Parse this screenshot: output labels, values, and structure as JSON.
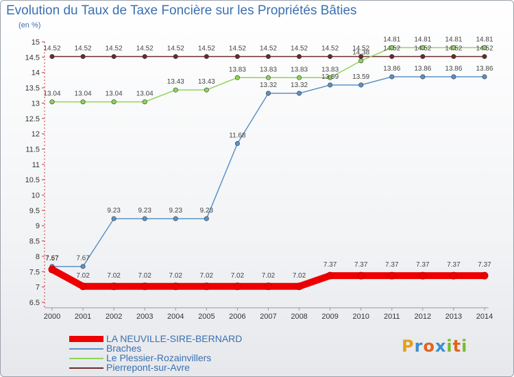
{
  "chart_data": {
    "type": "line",
    "title": "Evolution du Taux de Taxe Foncière sur les Propriétés Bâties",
    "ylabel": "(en %)",
    "xlabel": "",
    "ylim": [
      6.5,
      15
    ],
    "ytick_step": 0.5,
    "grid": false,
    "legend_position": "bottom-left",
    "x": [
      "2000",
      "2001",
      "2002",
      "2003",
      "2004",
      "2005",
      "2006",
      "2007",
      "2008",
      "2009",
      "2010",
      "2011",
      "2012",
      "2013",
      "2014"
    ],
    "series": [
      {
        "name": "LA NEUVILLE-SIRE-BERNARD",
        "color": "#ee0000",
        "emphasis": true,
        "values": [
          7.57,
          7.02,
          7.02,
          7.02,
          7.02,
          7.02,
          7.02,
          7.02,
          7.02,
          7.37,
          7.37,
          7.37,
          7.37,
          7.37,
          7.37
        ],
        "labels": [
          "7.57",
          "7.02",
          "7.02",
          "7.02",
          "7.02",
          "7.02",
          "7.02",
          "7.02",
          "7.02",
          "7.37",
          "7.37",
          "7.37",
          "7.37",
          "7.37",
          "7.37"
        ]
      },
      {
        "name": "Braches",
        "color": "#5b92c8",
        "values": [
          7.67,
          7.67,
          9.23,
          9.23,
          9.23,
          9.23,
          11.68,
          13.32,
          13.32,
          13.59,
          13.59,
          13.86,
          13.86,
          13.86,
          13.86
        ],
        "labels": [
          "7.67",
          "7.67",
          "9.23",
          "9.23",
          "9.23",
          "9.23",
          "11.68",
          "13.32",
          "13.32",
          "13.59",
          "13.59",
          "13.86",
          "13.86",
          "13.86",
          "13.86"
        ]
      },
      {
        "name": "Le Plessier-Rozainvillers",
        "color": "#8fd45a",
        "values": [
          13.04,
          13.04,
          13.04,
          13.04,
          13.43,
          13.43,
          13.83,
          13.83,
          13.83,
          13.83,
          14.38,
          14.81,
          14.81,
          14.81,
          14.81
        ],
        "labels": [
          "13.04",
          "13.04",
          "13.04",
          "13.04",
          "13.43",
          "13.43",
          "13.83",
          "13.83",
          "13.83",
          "13.83",
          "14.38",
          "14.81",
          "14.81",
          "14.81",
          "14.81"
        ]
      },
      {
        "name": "Pierrepont-sur-Avre",
        "color": "#6b2a2a",
        "values": [
          14.52,
          14.52,
          14.52,
          14.52,
          14.52,
          14.52,
          14.52,
          14.52,
          14.52,
          14.52,
          14.52,
          14.52,
          14.52,
          14.52,
          14.52
        ],
        "labels": [
          "14.52",
          "14.52",
          "14.52",
          "14.52",
          "14.52",
          "14.52",
          "14.52",
          "14.52",
          "14.52",
          "14.52",
          "14.52",
          "14.52",
          "14.52",
          "14.52",
          "14.52"
        ]
      }
    ]
  },
  "logo": {
    "letters": [
      "P",
      "r",
      "o",
      "x",
      "i",
      "t",
      "i"
    ]
  }
}
